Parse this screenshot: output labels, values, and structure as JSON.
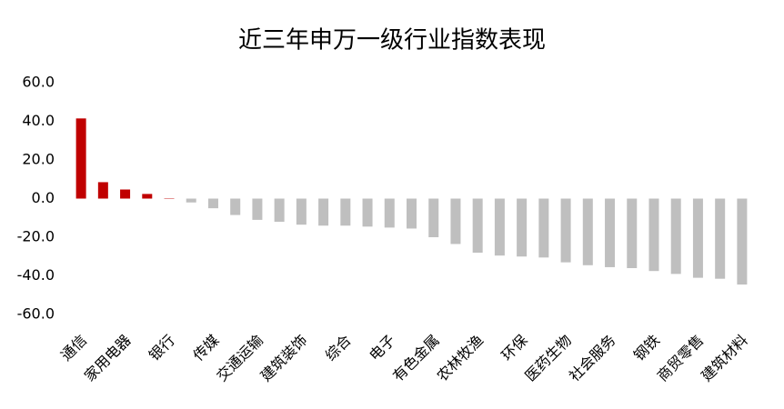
{
  "chart_data": {
    "type": "bar",
    "title": "近三年申万一级行业指数表现",
    "categories": [
      "通信",
      null,
      "家用电器",
      null,
      "银行",
      null,
      "传媒",
      null,
      "交通运输",
      null,
      "建筑装饰",
      null,
      "综合",
      null,
      "电子",
      null,
      "有色金属",
      null,
      "农林牧渔",
      null,
      "环保",
      null,
      "医药生物",
      null,
      "社会服务",
      null,
      "钢铁",
      null,
      "商贸零售",
      null,
      "建筑材料"
    ],
    "values": [
      41.5,
      8.5,
      4.7,
      2.4,
      0.2,
      -2.0,
      -5.0,
      -8.5,
      -11.0,
      -12.0,
      -13.5,
      -14.0,
      -14.0,
      -14.5,
      -15.0,
      -15.5,
      -20.0,
      -23.5,
      -28.0,
      -29.5,
      -30.0,
      -30.5,
      -33.0,
      -34.5,
      -35.5,
      -36.0,
      -37.5,
      -39.0,
      -41.0,
      -41.5,
      -44.5
    ],
    "positive_color": "#c00000",
    "negative_color": "#bfbfbf",
    "ylim": [
      -60,
      60
    ],
    "yticks": [
      {
        "value": -60,
        "label": "-60.0"
      },
      {
        "value": -40,
        "label": "-40.0"
      },
      {
        "value": -20,
        "label": "-20.0"
      },
      {
        "value": 0,
        "label": "0.0"
      },
      {
        "value": 20,
        "label": "20.0"
      },
      {
        "value": 40,
        "label": "40.0"
      },
      {
        "value": 60,
        "label": "60.0"
      }
    ],
    "grid": false
  }
}
